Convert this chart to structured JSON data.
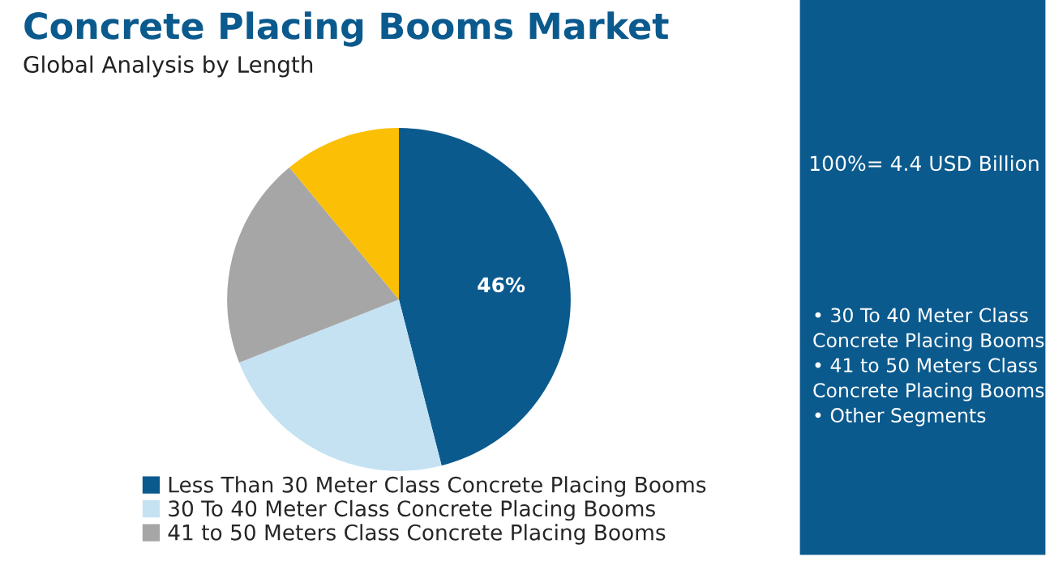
{
  "chart_data": {
    "type": "pie",
    "title": "Concrete Placing Booms Market",
    "subtitle": "Global Analysis by Length",
    "categories": [
      "Less Than 30 Meter Class Concrete Placing Booms",
      "30 To 40 Meter Class Concrete Placing Booms",
      "41 to 50 Meters Class Concrete Placing Booms",
      null
    ],
    "values": [
      46,
      23,
      20,
      11
    ],
    "colors": [
      "#0b5a8e",
      "#c5e2f3",
      "#a6a6a6",
      "#fbbf05"
    ],
    "value_labels": [
      "46%",
      null,
      null,
      null
    ],
    "legend": "bottom",
    "annotations": [
      "100%= 4.4 USD Billion",
      "• 30 To 40 Meter Class Concrete Placing Booms",
      "• 41 to 50 Meters Class Concrete Placing Booms",
      "• Other Segments"
    ]
  }
}
